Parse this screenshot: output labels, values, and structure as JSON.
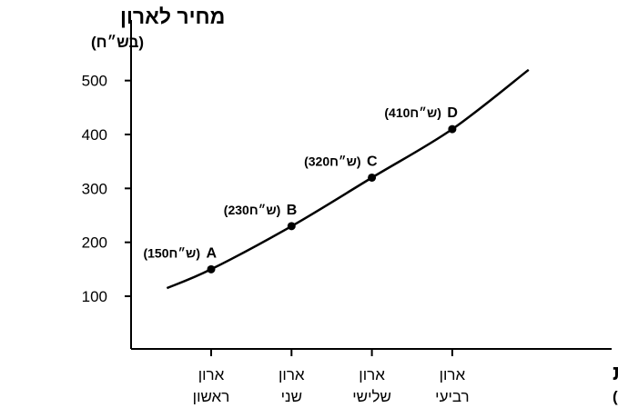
{
  "chart_data": {
    "type": "line",
    "title": "",
    "ylabel": "מחיר לארון",
    "ylabel_unit": "(בש״ח)",
    "xlabel": "ארונות",
    "xlabel_unit": "(ביחידות)",
    "yticks": [
      100,
      200,
      300,
      400,
      500
    ],
    "ylim": [
      0,
      560
    ],
    "categories": [
      {
        "line1": "ארון",
        "line2": "ראשון"
      },
      {
        "line1": "ארון",
        "line2": "שני"
      },
      {
        "line1": "ארון",
        "line2": "שלישי"
      },
      {
        "line1": "ארון",
        "line2": "רביעי"
      }
    ],
    "points": [
      {
        "x": 1,
        "label": "A",
        "value": 150,
        "value_text": "(150ש״ח)"
      },
      {
        "x": 2,
        "label": "B",
        "value": 230,
        "value_text": "(230ש״ח)"
      },
      {
        "x": 3,
        "label": "C",
        "value": 320,
        "value_text": "(320ש״ח)"
      },
      {
        "x": 4,
        "label": "D",
        "value": 410,
        "value_text": "(410ש״ח)"
      }
    ],
    "curve": [
      [
        0.45,
        115
      ],
      [
        1,
        150
      ],
      [
        2,
        230
      ],
      [
        3,
        320
      ],
      [
        4,
        410
      ],
      [
        4.95,
        520
      ]
    ],
    "grid": false,
    "legend": "none"
  }
}
